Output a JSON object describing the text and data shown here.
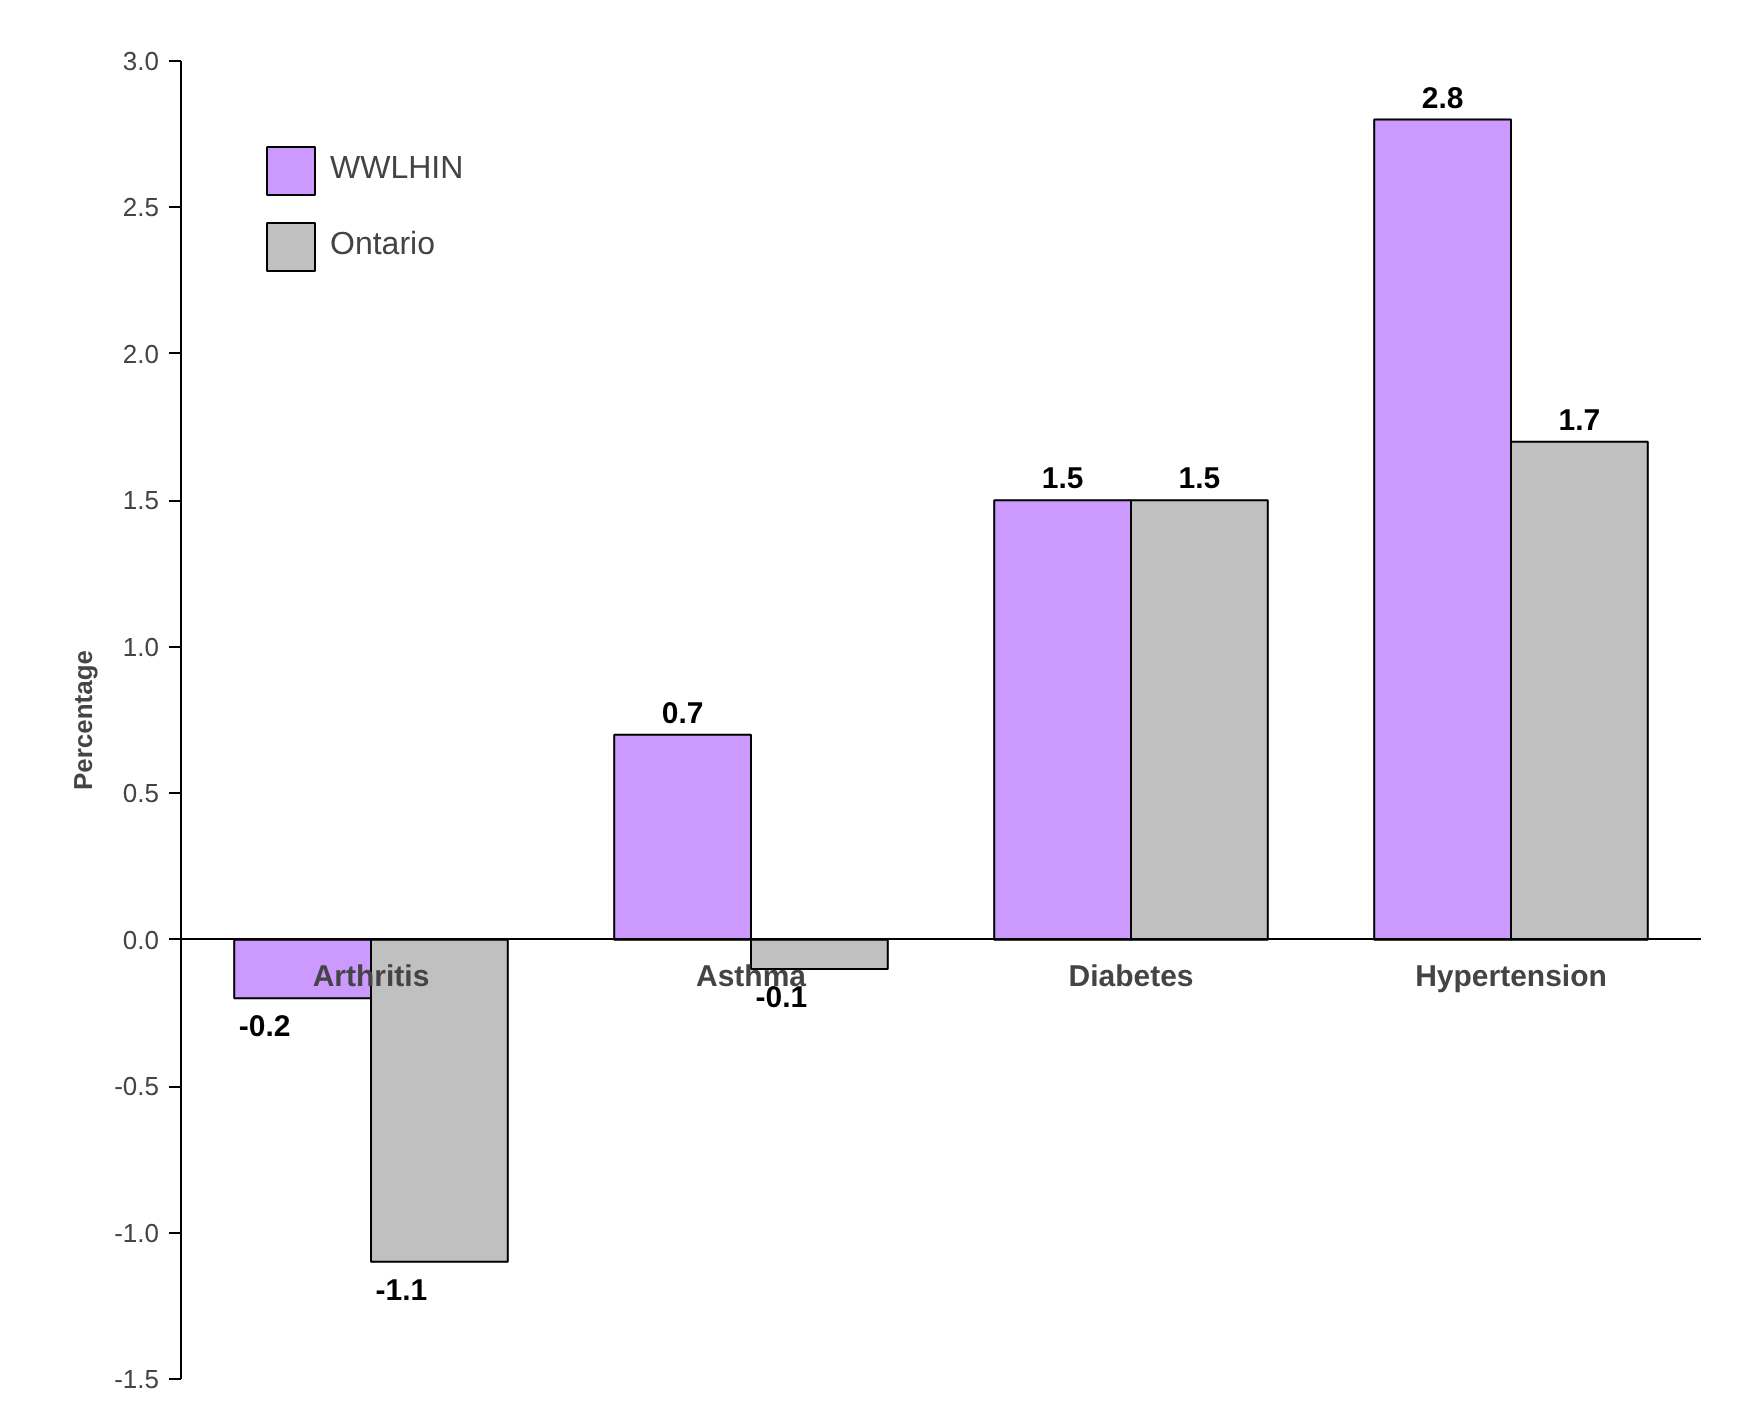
{
  "chart_data": {
    "type": "bar",
    "ylabel": "Percentage",
    "categories": [
      "Arthritis",
      "Asthma",
      "Diabetes",
      "Hypertension"
    ],
    "series": [
      {
        "name": "WWLHIN",
        "color": "#cc99ff",
        "values": [
          -0.2,
          0.7,
          1.5,
          2.8
        ]
      },
      {
        "name": "Ontario",
        "color": "#c0c0c0",
        "values": [
          -1.1,
          -0.1,
          1.5,
          1.7
        ]
      }
    ],
    "ylim": [
      -1.5,
      3.0
    ],
    "yticks": [
      {
        "value": -1.5,
        "label": "-1.5"
      },
      {
        "value": -1.0,
        "label": "-1.0"
      },
      {
        "value": -0.5,
        "label": "-0.5"
      },
      {
        "value": 0,
        "label": "0.0"
      },
      {
        "value": 0.5,
        "label": "0.5"
      },
      {
        "value": 1.0,
        "label": "1.0"
      },
      {
        "value": 1.5,
        "label": "1.5"
      },
      {
        "value": 2.0,
        "label": "2.0"
      },
      {
        "value": 2.5,
        "label": "2.5"
      },
      {
        "value": 3.0,
        "label": "3.0"
      }
    ],
    "grid": false,
    "legend": "top left",
    "data_labels": true
  }
}
